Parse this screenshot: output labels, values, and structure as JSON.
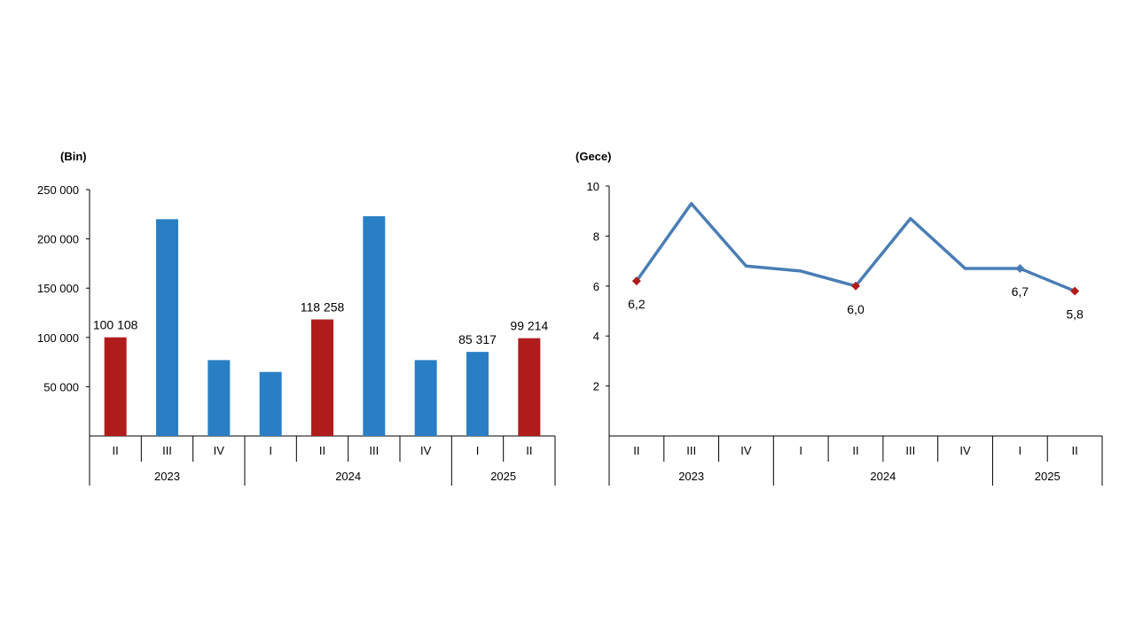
{
  "chart_data": [
    {
      "type": "bar",
      "ylabel": "(Bin)",
      "ylim": [
        0,
        250000
      ],
      "yticks": [
        "50 000",
        "100 000",
        "150 000",
        "200 000",
        "250 000"
      ],
      "ytick_values": [
        50000,
        100000,
        150000,
        200000,
        250000
      ],
      "categories": [
        "II",
        "III",
        "IV",
        "I",
        "II",
        "III",
        "IV",
        "I",
        "II"
      ],
      "years": [
        {
          "label": "2023",
          "span": 3
        },
        {
          "label": "2024",
          "span": 4
        },
        {
          "label": "2025",
          "span": 2
        }
      ],
      "values": [
        100108,
        220000,
        77000,
        65000,
        118258,
        223000,
        77000,
        85317,
        99214
      ],
      "labels": [
        "100 108",
        "",
        "",
        "",
        "118 258",
        "",
        "",
        "85 317",
        "99 214"
      ],
      "highlight": [
        true,
        false,
        false,
        false,
        true,
        false,
        false,
        false,
        true
      ],
      "colors": {
        "default": "#2a7fc4",
        "highlight": "#b01c1c"
      },
      "grid": false
    },
    {
      "type": "line",
      "ylabel": "(Gece)",
      "ylim": [
        0,
        10
      ],
      "yticks": [
        "2",
        "4",
        "6",
        "8",
        "10"
      ],
      "ytick_values": [
        2,
        4,
        6,
        8,
        10
      ],
      "categories": [
        "II",
        "III",
        "IV",
        "I",
        "II",
        "III",
        "IV",
        "I",
        "II"
      ],
      "years": [
        {
          "label": "2023",
          "span": 3
        },
        {
          "label": "2024",
          "span": 4
        },
        {
          "label": "2025",
          "span": 2
        }
      ],
      "values": [
        6.2,
        9.3,
        6.8,
        6.6,
        6.0,
        8.7,
        6.7,
        6.7,
        5.8
      ],
      "labels": [
        "6,2",
        "",
        "",
        "",
        "6,0",
        "",
        "",
        "6,7",
        "5,8"
      ],
      "markers": [
        "highlight",
        "none",
        "none",
        "none",
        "highlight",
        "none",
        "none",
        "default",
        "highlight"
      ],
      "colors": {
        "line": "#4a7db5",
        "highlight": "#b01c1c",
        "default": "#4a7db5"
      },
      "grid": false
    }
  ]
}
